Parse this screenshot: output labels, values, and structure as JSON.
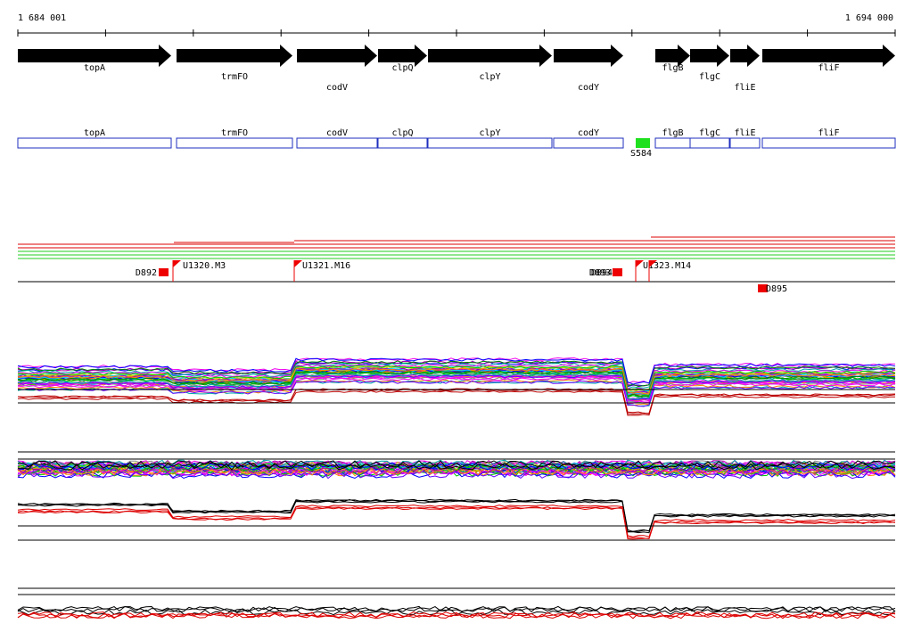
{
  "ruler": {
    "start": "1 684 001",
    "end": "1 694 000"
  },
  "genes": [
    {
      "label": "topA"
    },
    {
      "label": "trmFO"
    },
    {
      "label": "codV"
    },
    {
      "label": "clpQ"
    },
    {
      "label": "clpY"
    },
    {
      "label": "codY"
    },
    {
      "label": "flgB"
    },
    {
      "label": "flgC"
    },
    {
      "label": "fliE"
    },
    {
      "label": "fliF"
    }
  ],
  "features": [
    {
      "label": "topA"
    },
    {
      "label": "trmFO"
    },
    {
      "label": "codV"
    },
    {
      "label": "clpQ"
    },
    {
      "label": "clpY"
    },
    {
      "label": "codY"
    },
    {
      "label": "flgB"
    },
    {
      "label": "flgC"
    },
    {
      "label": "fliE"
    },
    {
      "label": "fliF"
    },
    {
      "label": "S584"
    }
  ],
  "markers": [
    {
      "label": "D892"
    },
    {
      "label": "U1320.M3"
    },
    {
      "label": "U1321.M16"
    },
    {
      "label": "D893"
    },
    {
      "label": "D894"
    },
    {
      "label": "U1323.M14"
    },
    {
      "label": "D895"
    }
  ]
}
